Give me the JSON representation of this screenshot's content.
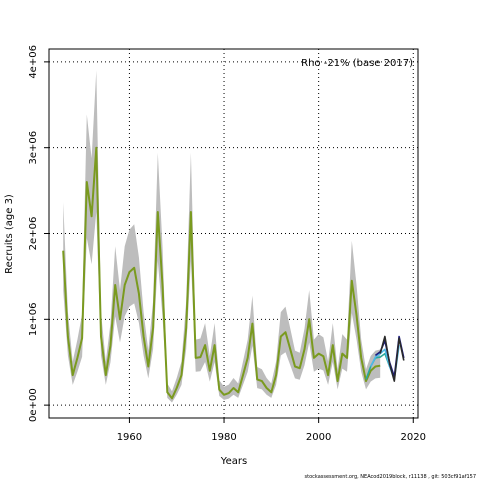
{
  "chart_data": {
    "type": "line",
    "annotation": "Rho -21% (base 2017)",
    "xlabel": "Years",
    "ylabel": "Recruits (age 3)",
    "xlim": [
      1943,
      2021
    ],
    "ylim": [
      -150000,
      4150000
    ],
    "x_ticks": [
      1960,
      1980,
      2000,
      2020
    ],
    "x_tick_labels": [
      "1960",
      "1980",
      "2000",
      "2020"
    ],
    "y_ticks": [
      0,
      1000000,
      2000000,
      3000000,
      4000000
    ],
    "y_tick_labels": [
      "0e+00",
      "1e+06",
      "2e+06",
      "3e+06",
      "4e+06"
    ],
    "grid": true,
    "footer": "stockassessment.org, NEAcod2019block, r11138 , git: 503cf91af157",
    "series": [
      {
        "color": "#7a9a1f",
        "x": [
          1946,
          1947,
          1948,
          1949,
          1950,
          1951,
          1952,
          1953,
          1954,
          1955,
          1956,
          1957,
          1958,
          1959,
          1960,
          1961,
          1962,
          1963,
          1964,
          1965,
          1966,
          1967,
          1968,
          1969,
          1970,
          1971,
          1972,
          1973,
          1974,
          1975,
          1976,
          1977,
          1978,
          1979,
          1980,
          1981,
          1982,
          1983,
          1984,
          1985,
          1986,
          1987,
          1988,
          1989,
          1990,
          1991,
          1992,
          1993,
          1994,
          1995,
          1996,
          1997,
          1998,
          1999,
          2000,
          2001,
          2002,
          2003,
          2004,
          2005,
          2006,
          2007,
          2008,
          2009,
          2010,
          2011,
          2012,
          2013
        ],
        "values": [
          1800000,
          800000,
          350000,
          550000,
          780000,
          2600000,
          2200000,
          3000000,
          800000,
          350000,
          700000,
          1400000,
          1000000,
          1400000,
          1550000,
          1600000,
          1300000,
          800000,
          450000,
          900000,
          2250000,
          1400000,
          150000,
          80000,
          200000,
          350000,
          900000,
          2250000,
          550000,
          560000,
          700000,
          400000,
          700000,
          180000,
          120000,
          140000,
          200000,
          150000,
          350000,
          550000,
          950000,
          300000,
          280000,
          200000,
          150000,
          350000,
          800000,
          850000,
          650000,
          450000,
          430000,
          650000,
          1000000,
          550000,
          600000,
          570000,
          350000,
          700000,
          280000,
          600000,
          550000,
          1450000,
          1050000,
          550000,
          280000,
          400000,
          450000,
          460000
        ]
      },
      {
        "color": "#2aa89a",
        "x": [
          2010,
          2011,
          2012,
          2013,
          2014,
          2015
        ],
        "values": [
          300000,
          450000,
          550000,
          560000,
          600000,
          450000
        ]
      },
      {
        "color": "#4db8e8",
        "x": [
          2011,
          2012,
          2013,
          2014,
          2015,
          2016,
          2017
        ],
        "values": [
          450000,
          560000,
          600000,
          650000,
          450000,
          300000,
          700000
        ]
      },
      {
        "color": "#1a1a80",
        "x": [
          2012,
          2013,
          2014,
          2015,
          2016,
          2017,
          2018
        ],
        "values": [
          580000,
          620000,
          750000,
          500000,
          330000,
          800000,
          550000
        ]
      },
      {
        "color": "#2a2a2a",
        "x": [
          2013,
          2014,
          2015,
          2016,
          2017,
          2018
        ],
        "values": [
          600000,
          800000,
          480000,
          280000,
          780000,
          520000
        ]
      }
    ],
    "band_color": "#bdbdbd"
  }
}
